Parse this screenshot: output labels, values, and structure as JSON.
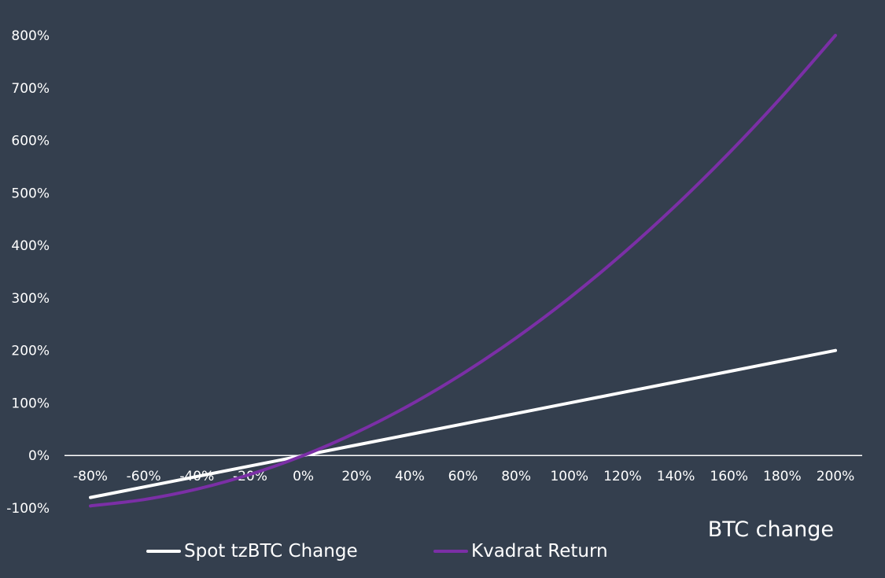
{
  "chart_data": {
    "type": "line",
    "title": "",
    "xlabel": "BTC change",
    "ylabel": "",
    "x": [
      "-80%",
      "-60%",
      "-40%",
      "-20%",
      "0%",
      "20%",
      "40%",
      "60%",
      "80%",
      "100%",
      "120%",
      "140%",
      "160%",
      "180%",
      "200%"
    ],
    "x_values": [
      -80,
      -60,
      -40,
      -20,
      0,
      20,
      40,
      60,
      80,
      100,
      120,
      140,
      160,
      180,
      200
    ],
    "xlim": [
      -80,
      200
    ],
    "yticks": [
      "-100%",
      "0%",
      "100%",
      "200%",
      "300%",
      "400%",
      "500%",
      "600%",
      "700%",
      "800%"
    ],
    "ytick_values": [
      -100,
      0,
      100,
      200,
      300,
      400,
      500,
      600,
      700,
      800
    ],
    "ylim": [
      -100,
      800
    ],
    "grid": false,
    "legend_position": "bottom-left",
    "series": [
      {
        "name": "Spot tzBTC Change",
        "color": "#ffffff",
        "values": [
          -80,
          -60,
          -40,
          -20,
          0,
          20,
          40,
          60,
          80,
          100,
          120,
          140,
          160,
          180,
          200
        ]
      },
      {
        "name": "Kvadrat Return",
        "color": "#7b2fa6",
        "values": [
          -96,
          -84,
          -64,
          -36,
          0,
          44,
          96,
          156,
          224,
          300,
          384,
          476,
          576,
          684,
          800
        ]
      }
    ]
  }
}
